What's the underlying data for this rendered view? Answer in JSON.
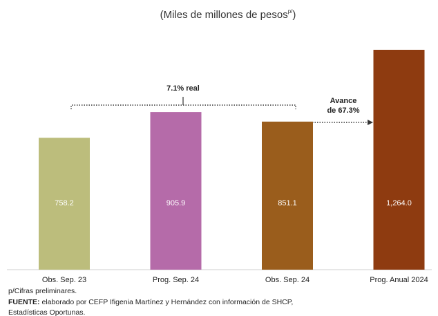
{
  "chart_data": {
    "type": "bar",
    "title": "(Miles de millones de pesos",
    "title_superscript": "p/",
    "title_end": ")",
    "categories": [
      "Obs. Sep. 23",
      "Prog. Sep. 24",
      "Obs. Sep. 24",
      "Prog. Anual 2024"
    ],
    "values": [
      758.2,
      905.9,
      851.1,
      1264.0
    ],
    "value_labels": [
      "758.2",
      "905.9",
      "851.1",
      "1,264.0"
    ],
    "colors": [
      "#bcbd7c",
      "#b56ba9",
      "#9a5d1c",
      "#8e3b10"
    ],
    "annotations": [
      "7.1% real",
      "Avance",
      "de 67.3%"
    ],
    "note": "p/Cifras preliminares.",
    "source": {
      "label": "FUENTE:",
      "lines": [
        "elaborado por CEFP Ifigenia Martínez y Hernández con información de SHCP,",
        "Estadísticas Oportunas."
      ]
    }
  }
}
